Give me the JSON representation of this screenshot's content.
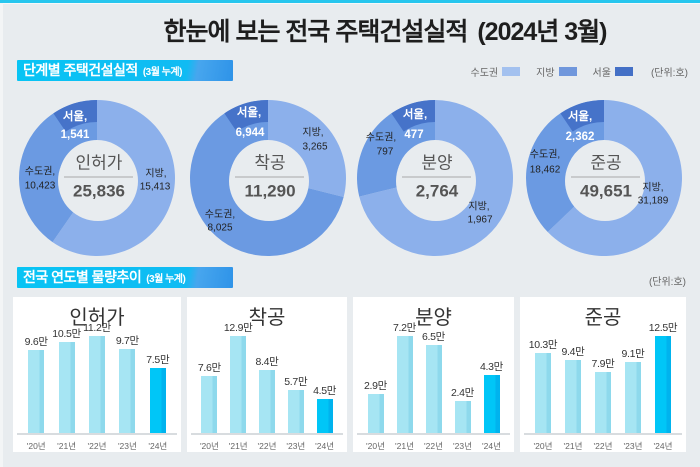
{
  "page": {
    "title": "한눈에 보는 전국 주택건설실적",
    "title_period": "(2024년 3월)"
  },
  "sections": {
    "stage": {
      "title": "단계별 주택건설실적",
      "subtitle": "(3월 누계)"
    },
    "trend": {
      "title": "전국 연도별 물량추이",
      "subtitle": "(3월 누계)",
      "unit": "(단위:호)"
    }
  },
  "legend": {
    "items": [
      {
        "label": "수도권",
        "color": "#A3C1EF"
      },
      {
        "label": "지방",
        "color": "#7097DC"
      },
      {
        "label": "서울",
        "color": "#4470C6"
      }
    ],
    "unit": "(단위:호)"
  },
  "colors": {
    "slice_jibang": "#8CB0EB",
    "slice_sudogwon": "#6B9AE2",
    "slice_seoul": "#4673C9",
    "bar": "#A6E5F3",
    "bar_edge": "#8ED9EC",
    "bar_highlight": "#00C6F7",
    "bar_highlight_edge": "#00B3EE",
    "accent": "#27C6EE"
  },
  "chart_data": [
    {
      "type": "pie",
      "title": "인허가",
      "total_label": "25,836",
      "total": 25836,
      "series": [
        {
          "name": "지방",
          "value": 15413,
          "label": "지방,",
          "value_label": "15,413"
        },
        {
          "name": "수도권",
          "value": 10423,
          "label": "수도권,",
          "value_label": "10,423"
        },
        {
          "name": "서울",
          "value": 1541,
          "label": "서울,",
          "value_label": "1,541"
        }
      ]
    },
    {
      "type": "pie",
      "title": "착공",
      "total_label": "11,290",
      "total": 11290,
      "series": [
        {
          "name": "지방",
          "value": 3265,
          "label": "지방,",
          "value_label": "3,265"
        },
        {
          "name": "수도권",
          "value": 8025,
          "label": "수도권,",
          "value_label": "8,025"
        },
        {
          "name": "서울",
          "value": 6944,
          "label": "서울,",
          "value_label": "6,944"
        }
      ]
    },
    {
      "type": "pie",
      "title": "분양",
      "total_label": "2,764",
      "total": 2764,
      "series": [
        {
          "name": "지방",
          "value": 1967,
          "label": "지방,",
          "value_label": "1,967"
        },
        {
          "name": "수도권",
          "value": 797,
          "label": "수도권,",
          "value_label": "797"
        },
        {
          "name": "서울",
          "value": 477,
          "label": "서울,",
          "value_label": "477"
        }
      ]
    },
    {
      "type": "pie",
      "title": "준공",
      "total_label": "49,651",
      "total": 49651,
      "series": [
        {
          "name": "지방",
          "value": 31189,
          "label": "지방,",
          "value_label": "31,189"
        },
        {
          "name": "수도권",
          "value": 18462,
          "label": "수도권,",
          "value_label": "18,462"
        },
        {
          "name": "서울",
          "value": 2362,
          "label": "서울,",
          "value_label": "2,362"
        }
      ]
    },
    {
      "type": "bar",
      "title": "인허가",
      "unit": "만호",
      "categories": [
        "'20년",
        "'21년",
        "'22년",
        "'23년",
        "'24년"
      ],
      "values": [
        9.6,
        10.5,
        11.2,
        9.7,
        7.5
      ],
      "value_labels": [
        "9.6만",
        "10.5만",
        "11.2만",
        "9.7만",
        "7.5만"
      ],
      "highlight_index": 4
    },
    {
      "type": "bar",
      "title": "착공",
      "unit": "만호",
      "categories": [
        "'20년",
        "'21년",
        "'22년",
        "'23년",
        "'24년"
      ],
      "values": [
        7.6,
        12.9,
        8.4,
        5.7,
        4.5
      ],
      "value_labels": [
        "7.6만",
        "12.9만",
        "8.4만",
        "5.7만",
        "4.5만"
      ],
      "highlight_index": 4
    },
    {
      "type": "bar",
      "title": "분양",
      "unit": "만호",
      "categories": [
        "'20년",
        "'21년",
        "'22년",
        "'23년",
        "'24년"
      ],
      "values": [
        2.9,
        7.2,
        6.5,
        2.4,
        4.3
      ],
      "value_labels": [
        "2.9만",
        "7.2만",
        "6.5만",
        "2.4만",
        "4.3만"
      ],
      "highlight_index": 4
    },
    {
      "type": "bar",
      "title": "준공",
      "unit": "만호",
      "categories": [
        "'20년",
        "'21년",
        "'22년",
        "'23년",
        "'24년"
      ],
      "values": [
        10.3,
        9.4,
        7.9,
        9.1,
        12.5
      ],
      "value_labels": [
        "10.3만",
        "9.4만",
        "7.9만",
        "9.1만",
        "12.5만"
      ],
      "highlight_index": 4
    }
  ]
}
